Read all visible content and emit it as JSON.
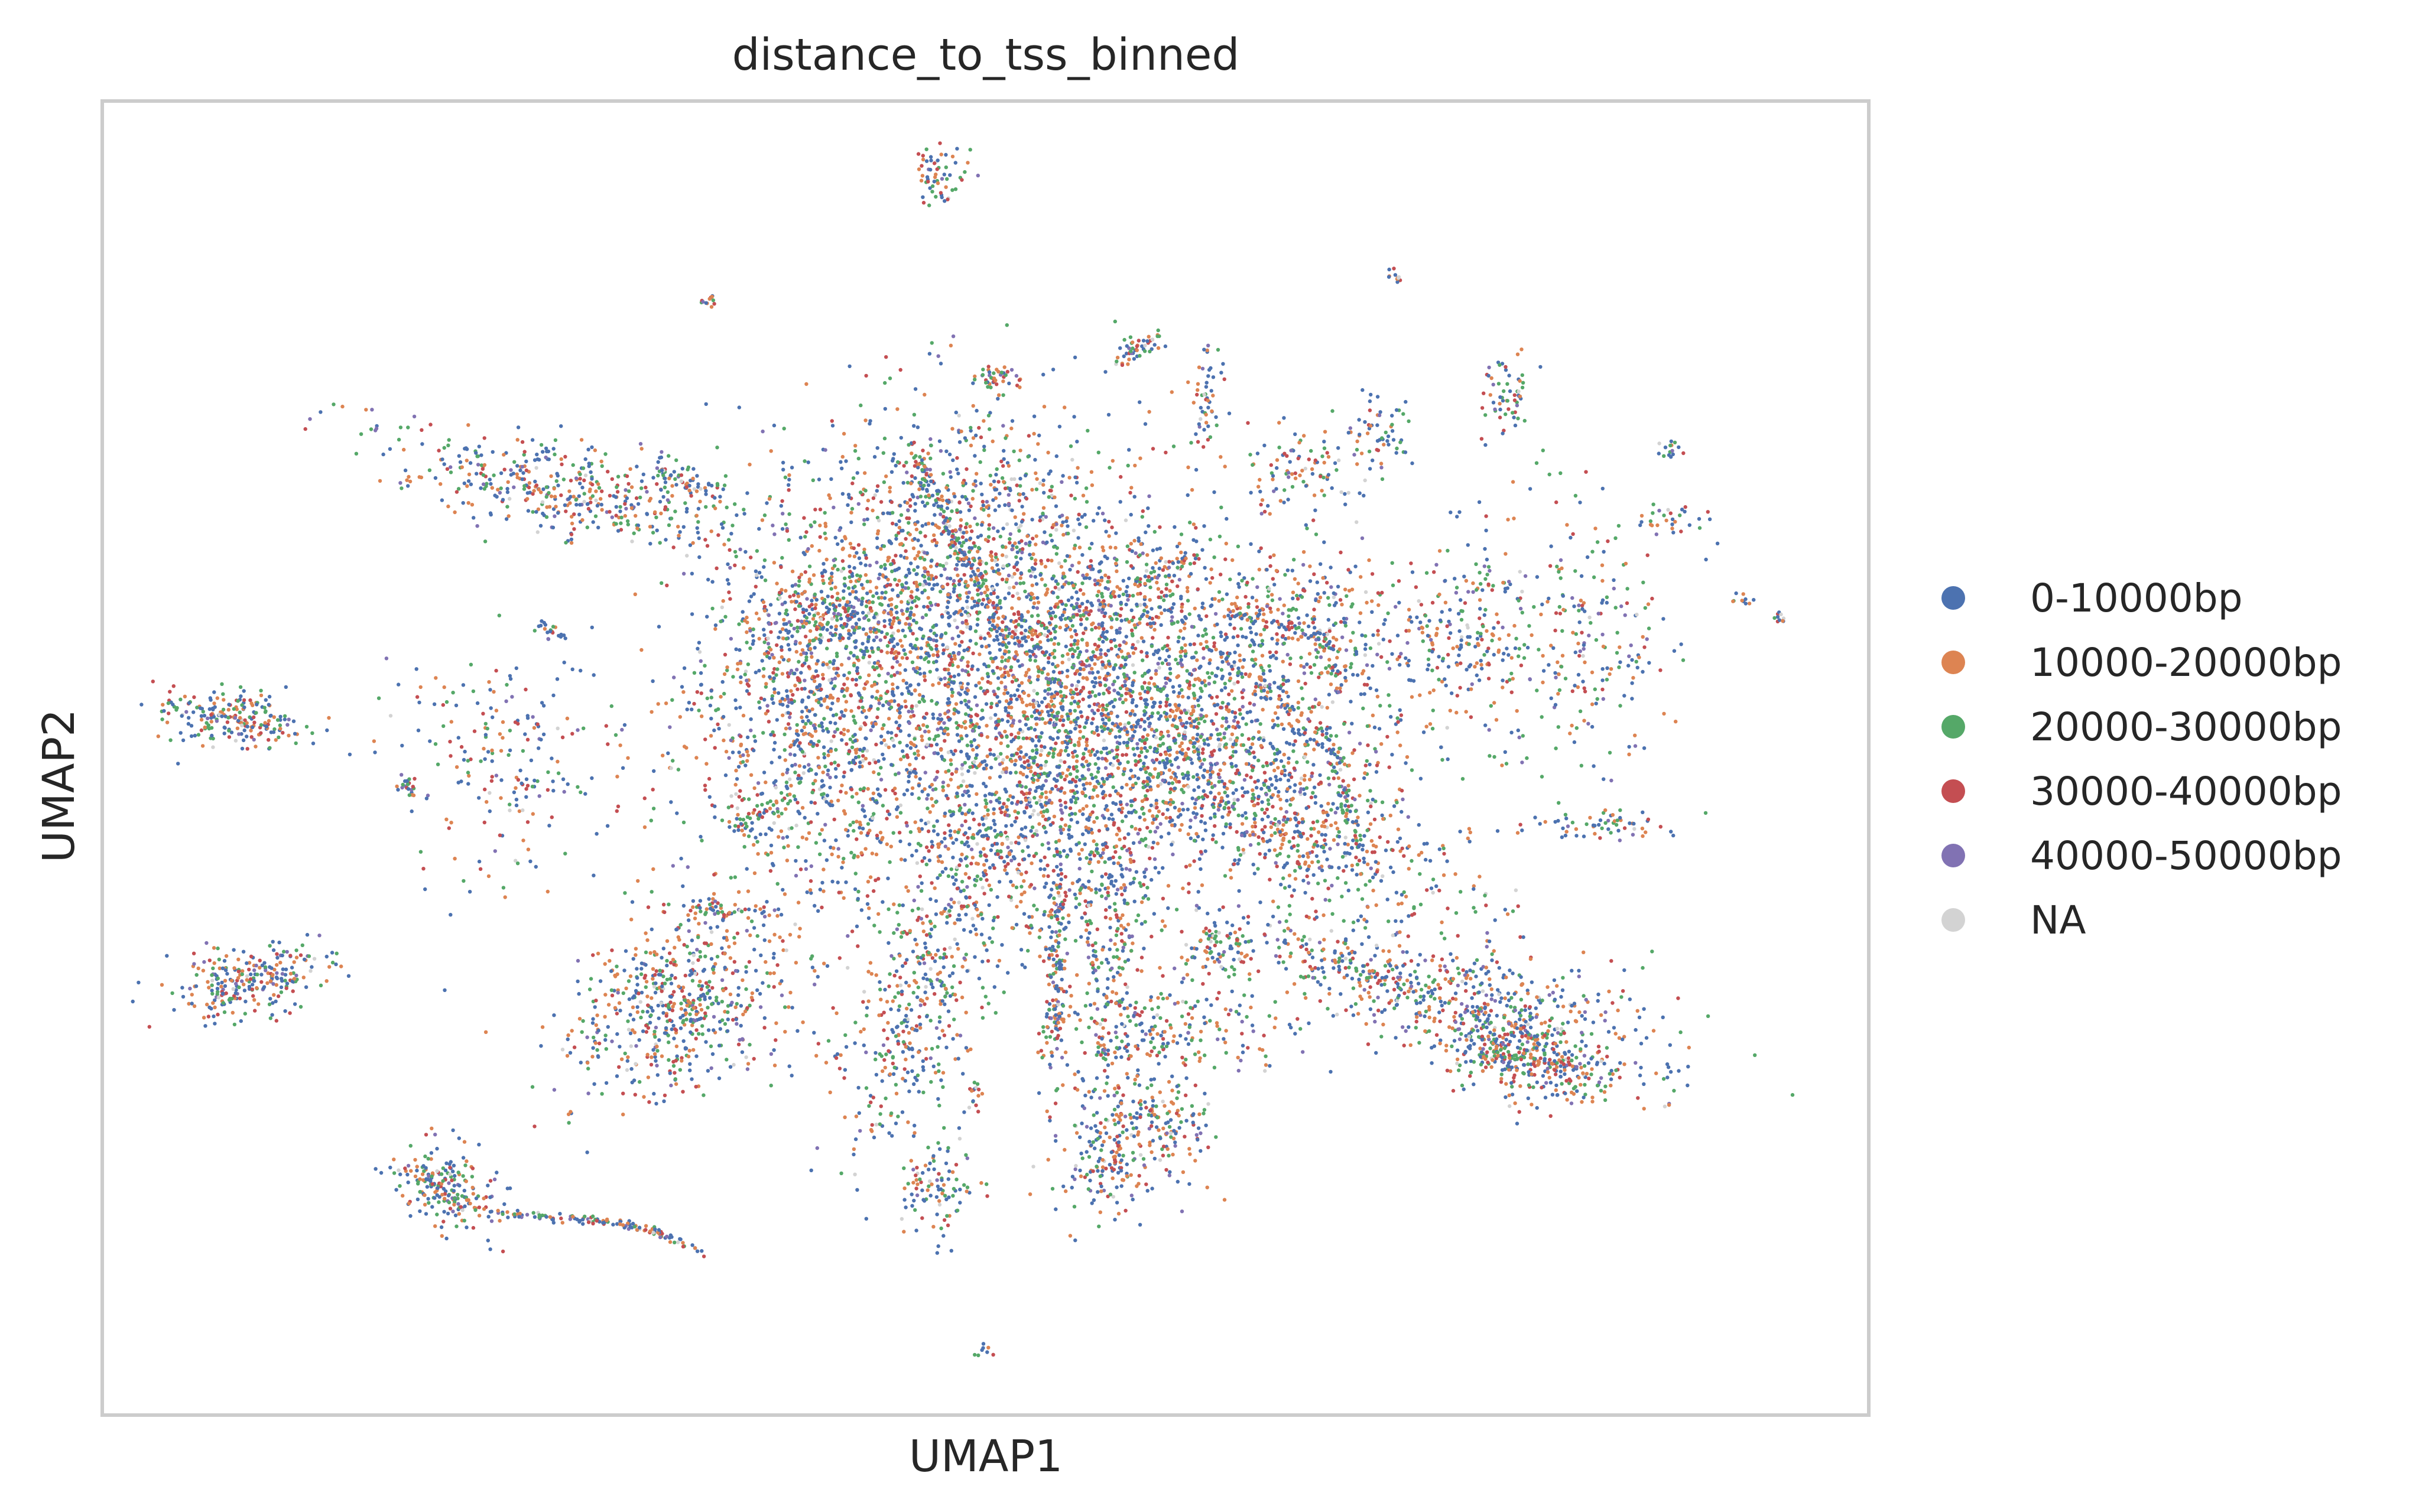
{
  "chart_data": {
    "type": "scatter",
    "title": "distance_to_tss_binned",
    "xlabel": "UMAP1",
    "ylabel": "UMAP2",
    "xticks": [],
    "yticks": [],
    "grid": false,
    "legend_position": "right",
    "categories": [
      {
        "name": "0-10000bp",
        "color": "#4c72b0"
      },
      {
        "name": "10000-20000bp",
        "color": "#dd8452"
      },
      {
        "name": "20000-30000bp",
        "color": "#55a868"
      },
      {
        "name": "30000-40000bp",
        "color": "#c44e52"
      },
      {
        "name": "40000-50000bp",
        "color": "#8172b3"
      },
      {
        "name": "NA",
        "color": "#d3d3d3"
      }
    ]
  }
}
